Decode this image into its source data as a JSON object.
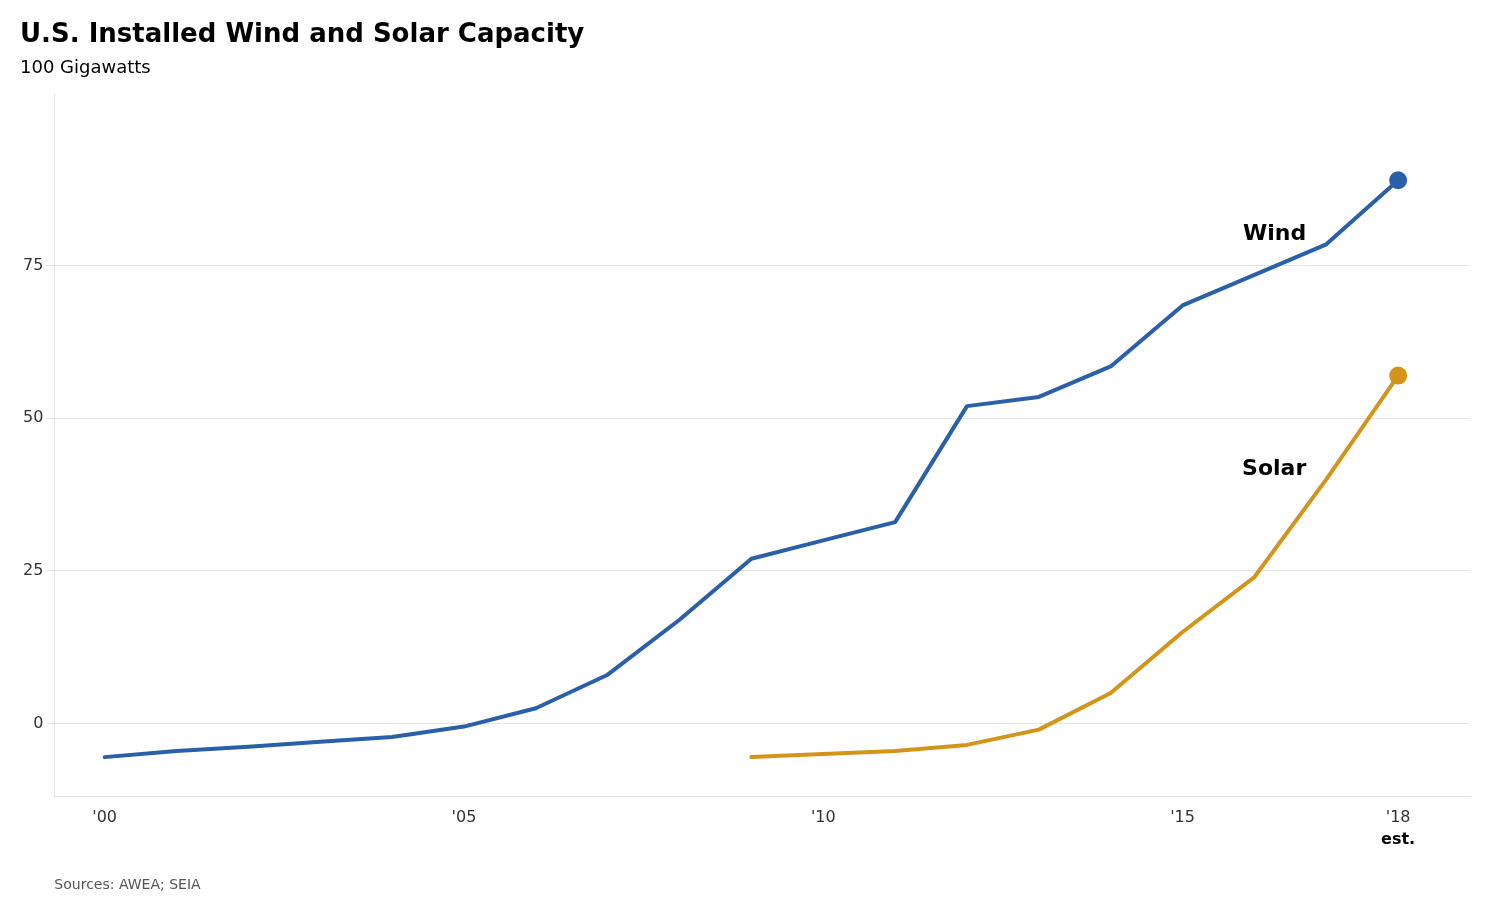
{
  "chart_data": {
    "type": "line",
    "title": "U.S. Installed Wind and Solar Capacity",
    "ylabel": "100 Gigawatts",
    "source": "Sources: AWEA; SEIA",
    "annotations": [
      {
        "text": "est.",
        "x": 2018
      }
    ],
    "series": [
      {
        "name": "Wind",
        "color": "#2a5faa",
        "marker": "circle",
        "x": [
          2000,
          2001,
          2002,
          2003,
          2004,
          2005,
          2006,
          2007,
          2008,
          2009,
          2010,
          2011,
          2012,
          2013,
          2014,
          2015,
          2016,
          2017,
          2018
        ],
        "values": [
          -5.5,
          -4.5,
          -3.8,
          -3.0,
          -2.2,
          -0.5,
          2.5,
          8.0,
          17.0,
          27.0,
          30.0,
          33.0,
          52.0,
          53.5,
          58.5,
          68.5,
          73.5,
          78.5,
          89.0
        ]
      },
      {
        "name": "Solar",
        "color": "#d4941a",
        "marker": "circle",
        "x": [
          2009,
          2010,
          2011,
          2012,
          2013,
          2014,
          2015,
          2016,
          2017,
          2018
        ],
        "values": [
          -5.5,
          -5.0,
          -4.5,
          -3.5,
          -1.0,
          5.0,
          15.0,
          24.0,
          40.0,
          57.0
        ]
      }
    ],
    "xlim": [
      1999.3,
      2019.0
    ],
    "xticks": [
      {
        "value": 2000,
        "label": "'00"
      },
      {
        "value": 2005,
        "label": "'05"
      },
      {
        "value": 2010,
        "label": "'10"
      },
      {
        "value": 2015,
        "label": "'15"
      },
      {
        "value": 2018,
        "label": "'18"
      }
    ],
    "ylim": [
      -12,
      103
    ],
    "yticks": [
      0,
      25,
      50,
      75
    ],
    "grid": "y",
    "legend": false
  }
}
